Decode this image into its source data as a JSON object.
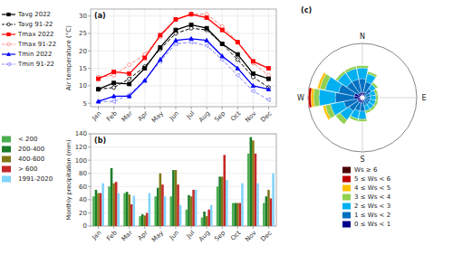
{
  "chart_data": [
    {
      "type": "line",
      "title": "(a)",
      "ylabel": "Air temperature (°C)",
      "categories": [
        "Jan",
        "Feb",
        "Mar",
        "Apr",
        "May",
        "Jun",
        "Jul",
        "Aug",
        "Sep",
        "Oct",
        "Nov",
        "Dec"
      ],
      "series": [
        {
          "name": "Tavg 2022",
          "color": "black",
          "line_style": "solid",
          "marker": "square",
          "values": [
            9.0,
            10.8,
            10.5,
            15.0,
            21.0,
            26.0,
            27.5,
            26.5,
            22.0,
            19.0,
            13.5,
            12.0
          ]
        },
        {
          "name": "Tavg 91-22",
          "color": "black",
          "line_style": "dashed",
          "marker": "circle",
          "values": [
            9.0,
            9.5,
            12.0,
            15.5,
            20.5,
            25.0,
            26.5,
            26.0,
            22.0,
            17.5,
            12.5,
            9.5
          ]
        },
        {
          "name": "Tmax 2022",
          "color": "red",
          "line_style": "solid",
          "marker": "square",
          "values": [
            12.0,
            14.0,
            13.5,
            18.0,
            24.5,
            29.0,
            30.5,
            29.5,
            26.0,
            22.5,
            17.0,
            15.0
          ]
        },
        {
          "name": "Tmax 91-22",
          "color": "#ff8080",
          "line_style": "dashed",
          "marker": "circle",
          "values": [
            12.5,
            13.0,
            16.0,
            19.0,
            24.0,
            29.0,
            30.5,
            30.5,
            27.0,
            22.5,
            16.5,
            13.0
          ]
        },
        {
          "name": "Tmin 2022",
          "color": "blue",
          "line_style": "solid",
          "marker": "triangle-up",
          "values": [
            5.5,
            7.0,
            7.0,
            11.5,
            17.5,
            23.0,
            23.5,
            23.0,
            18.5,
            15.0,
            10.0,
            9.0
          ]
        },
        {
          "name": "Tmin 91-22",
          "color": "#8080ff",
          "line_style": "dashed",
          "marker": "triangle-left",
          "values": [
            5.5,
            5.5,
            7.5,
            11.5,
            17.0,
            22.0,
            22.5,
            21.5,
            17.5,
            13.0,
            8.5,
            6.0
          ]
        }
      ],
      "ylim": [
        4,
        32
      ],
      "yticks": [
        5,
        10,
        15,
        20,
        25,
        30
      ],
      "grid": true,
      "legend": "left"
    },
    {
      "type": "bar",
      "title": "(b)",
      "ylabel": "Monthly precipitation (mm)",
      "categories": [
        "Jan",
        "Feb",
        "Mar",
        "Apr",
        "May",
        "Jun",
        "Jul",
        "Aug",
        "Sep",
        "Oct",
        "Nov",
        "Dec"
      ],
      "series": [
        {
          "name": "< 200",
          "color": "#4caf50",
          "values": [
            45,
            60,
            50,
            15,
            45,
            45,
            25,
            13,
            60,
            35,
            110,
            35
          ]
        },
        {
          "name": "200-400",
          "color": "#1a7d2a",
          "values": [
            55,
            88,
            52,
            18,
            58,
            85,
            47,
            22,
            75,
            35,
            135,
            45
          ]
        },
        {
          "name": "400-600",
          "color": "#827717",
          "values": [
            50,
            65,
            48,
            16,
            80,
            85,
            45,
            15,
            75,
            35,
            130,
            55
          ]
        },
        {
          "name": "> 600",
          "color": "#c62828",
          "values": [
            50,
            67,
            33,
            20,
            63,
            63,
            55,
            25,
            108,
            35,
            110,
            42
          ]
        },
        {
          "name": "1991-2020",
          "color": "#81d4fa",
          "values": [
            65,
            50,
            46,
            50,
            45,
            32,
            55,
            32,
            70,
            65,
            65,
            80
          ]
        }
      ],
      "ylim": [
        0,
        140
      ],
      "yticks": [
        0,
        20,
        40,
        60,
        80,
        100,
        120,
        140
      ],
      "grid": true,
      "legend": "left"
    },
    {
      "type": "wind_rose",
      "title": "(c)",
      "stacked": true,
      "x": [
        0,
        22.5,
        45,
        67.5,
        90,
        112.5,
        135,
        157.5,
        180,
        202.5,
        225,
        247.5,
        270,
        292.5,
        315,
        337.5
      ],
      "xticks": [
        {
          "value": 0,
          "label": "N"
        },
        {
          "value": 90,
          "label": "E"
        },
        {
          "value": 180,
          "label": "S"
        },
        {
          "value": 270,
          "label": "W"
        }
      ],
      "ylim": [
        0,
        20
      ],
      "tick_labels": "x",
      "grid": true,
      "legend": "below",
      "series": [
        {
          "name": "0 ≤ Ws < 1",
          "color": "#00008b",
          "values": [
            2,
            2,
            1,
            1,
            1,
            1,
            1,
            1,
            2,
            2,
            2,
            2,
            3,
            3,
            2,
            2
          ]
        },
        {
          "name": "1 ≤ Ws < 2",
          "color": "#0070c0",
          "values": [
            5,
            4,
            3,
            2,
            2,
            2,
            2,
            2,
            3,
            3,
            4,
            5,
            7,
            6,
            5,
            5
          ]
        },
        {
          "name": "2 ≤ Ws < 3",
          "color": "#00b0f0",
          "values": [
            4,
            3,
            2,
            2,
            2,
            2,
            2,
            2,
            3,
            3,
            4,
            5,
            6,
            5,
            4,
            4
          ]
        },
        {
          "name": "3 ≤ Ws < 4",
          "color": "#92d050",
          "values": [
            1,
            1,
            1,
            1,
            1,
            1,
            1,
            1,
            1,
            1,
            2,
            2,
            2,
            2,
            1,
            1
          ]
        },
        {
          "name": "4 ≤ Ws < 5",
          "color": "#ffc000",
          "values": [
            0,
            0,
            0,
            0,
            0,
            0,
            0,
            0,
            0,
            0,
            0,
            1,
            1,
            1,
            0,
            0
          ]
        },
        {
          "name": "5 ≤ Ws < 6",
          "color": "#c00000",
          "values": [
            0,
            0,
            0,
            0,
            0,
            0,
            0,
            0,
            0,
            0,
            0,
            0,
            1,
            0,
            0,
            0
          ]
        },
        {
          "name": "Ws ≥ 6",
          "color": "#4b0000",
          "values": [
            0,
            0,
            0,
            0,
            0,
            0,
            0,
            0,
            0,
            0,
            0,
            0,
            0,
            0,
            0,
            0
          ]
        }
      ]
    }
  ]
}
